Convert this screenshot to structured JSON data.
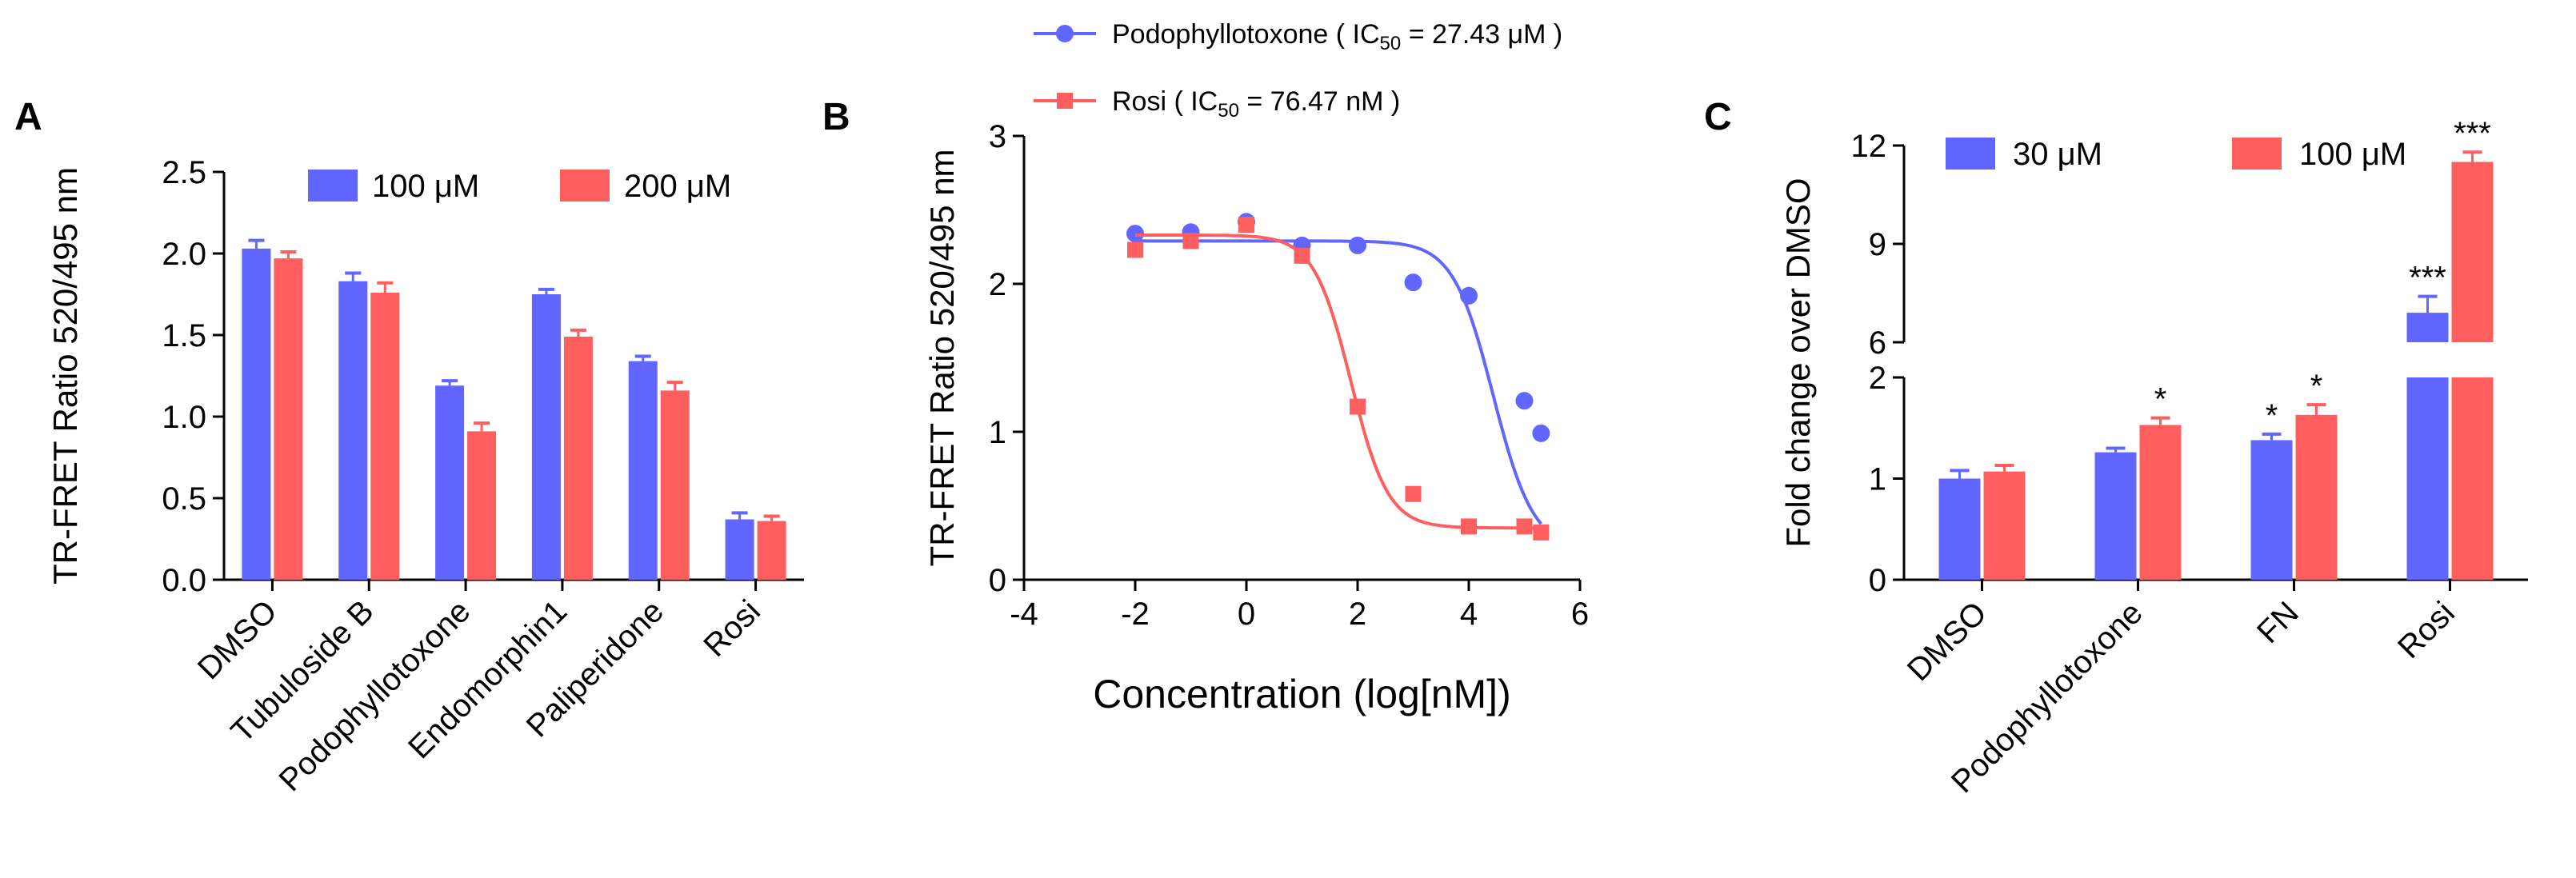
{
  "colors": {
    "blue": "#6166FF",
    "red": "#FF5E5E",
    "axis": "#000000"
  },
  "chart_data": [
    {
      "panel": "A",
      "type": "bar",
      "title": "",
      "ylabel": "TR-FRET Ratio 520/495 nm",
      "xlabel": "",
      "ylim": [
        0,
        2.5
      ],
      "yticks": [
        "0.0",
        "0.5",
        "1.0",
        "1.5",
        "2.0",
        "2.5"
      ],
      "categories": [
        "DMSO",
        "Tubuloside B",
        "Podophyllotoxone",
        "Endomorphin1",
        "Paliperidone",
        "Rosi"
      ],
      "legend_position": "top-right",
      "series": [
        {
          "name": "100 μM",
          "color": "#6166FF",
          "values": [
            2.03,
            1.83,
            1.19,
            1.75,
            1.34,
            0.37
          ],
          "errors": [
            0.05,
            0.05,
            0.03,
            0.03,
            0.03,
            0.04
          ]
        },
        {
          "name": "200 μM",
          "color": "#FF5E5E",
          "values": [
            1.97,
            1.76,
            0.91,
            1.49,
            1.16,
            0.36
          ],
          "errors": [
            0.04,
            0.06,
            0.05,
            0.04,
            0.05,
            0.03
          ]
        }
      ]
    },
    {
      "panel": "B",
      "type": "scatter",
      "title": "",
      "xlabel": "Concentration (log[nM])",
      "ylabel": "TR-FRET Ratio 520/495 nm",
      "xlim": [
        -4,
        6
      ],
      "ylim": [
        0,
        3
      ],
      "xticks": [
        "-4",
        "-2",
        "0",
        "2",
        "4",
        "6"
      ],
      "yticks": [
        "0",
        "1",
        "2",
        "3"
      ],
      "legend_position": "top",
      "series": [
        {
          "name": "Podophyllotoxone",
          "ic50_label": "IC",
          "ic50_sub": "50",
          "ic50_value": " = 27.43 μM",
          "color": "#6166FF",
          "marker": "circle",
          "x": [
            -2,
            -1,
            0,
            1,
            2,
            3,
            4,
            5,
            5.3
          ],
          "y": [
            2.34,
            2.35,
            2.42,
            2.26,
            2.26,
            2.01,
            1.92,
            1.21,
            0.99
          ],
          "fit": {
            "top": 2.29,
            "bottom": 0.2,
            "logEC50": 4.44,
            "hill": -1.2
          }
        },
        {
          "name": "Rosi",
          "ic50_label": "IC",
          "ic50_sub": "50",
          "ic50_value": " = 76.47 nM",
          "color": "#FF5E5E",
          "marker": "square",
          "x": [
            -2,
            -1,
            0,
            1,
            2,
            3,
            4,
            5,
            5.3
          ],
          "y": [
            2.23,
            2.29,
            2.4,
            2.19,
            1.17,
            0.58,
            0.36,
            0.36,
            0.32
          ],
          "fit": {
            "top": 2.33,
            "bottom": 0.35,
            "logEC50": 1.88,
            "hill": -1.3
          }
        }
      ]
    },
    {
      "panel": "C",
      "type": "bar",
      "title": "",
      "ylabel": "Fold change over DMSO",
      "xlabel": "",
      "y_axis_break": {
        "lower_range": [
          0,
          2
        ],
        "upper_range": [
          6,
          12
        ]
      },
      "yticks_lower": [
        "0",
        "1",
        "2"
      ],
      "yticks_upper": [
        "6",
        "9",
        "12"
      ],
      "categories": [
        "DMSO",
        "Podophyllotoxone",
        "FN",
        "Rosi"
      ],
      "legend_position": "top-left",
      "series": [
        {
          "name": "30 μM",
          "color": "#6166FF",
          "values": [
            1.0,
            1.26,
            1.38,
            6.9
          ],
          "errors": [
            0.08,
            0.04,
            0.06,
            0.5
          ],
          "significance": [
            "",
            "",
            "*",
            "***"
          ]
        },
        {
          "name": "100 μM",
          "color": "#FF5E5E",
          "values": [
            1.07,
            1.53,
            1.63,
            11.5
          ],
          "errors": [
            0.06,
            0.07,
            0.1,
            0.3
          ],
          "significance": [
            "",
            "*",
            "*",
            "***"
          ]
        }
      ]
    }
  ]
}
